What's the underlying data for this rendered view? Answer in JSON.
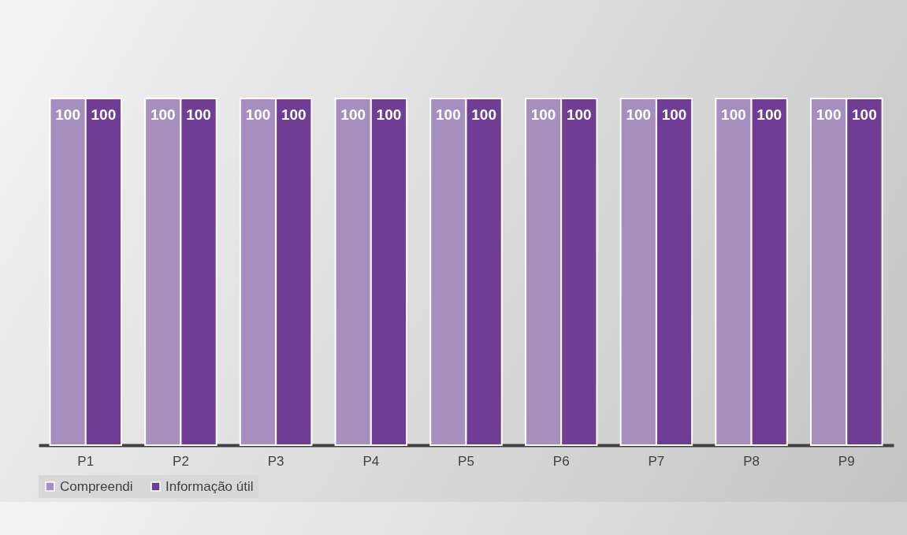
{
  "chart_data": {
    "type": "bar",
    "categories": [
      "P1",
      "P2",
      "P3",
      "P4",
      "P5",
      "P6",
      "P7",
      "P8",
      "P9"
    ],
    "series": [
      {
        "name": "Compreendi",
        "color": "#a68fbf",
        "values": [
          100,
          100,
          100,
          100,
          100,
          100,
          100,
          100,
          100
        ]
      },
      {
        "name": "Informação útil",
        "color": "#6f3d94",
        "values": [
          100,
          100,
          100,
          100,
          100,
          100,
          100,
          100,
          100
        ]
      }
    ],
    "data_labels": true,
    "legend": "bottom",
    "grid": false
  }
}
